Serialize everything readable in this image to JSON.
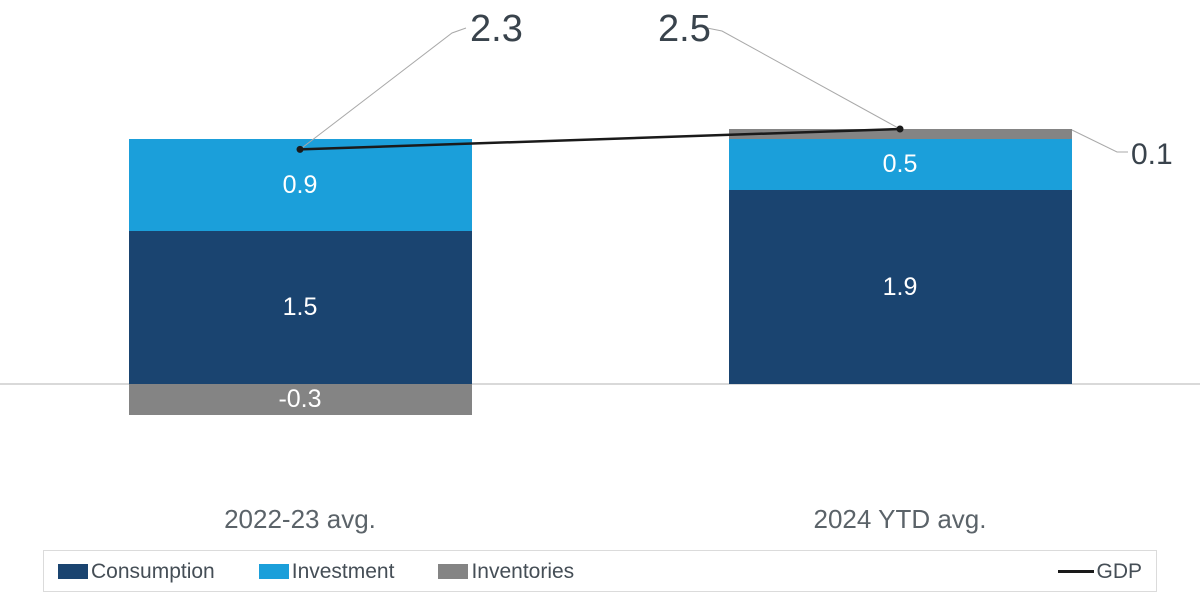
{
  "chart_data": {
    "type": "bar",
    "stacked": true,
    "categories": [
      "2022-23 avg.",
      "2024 YTD avg."
    ],
    "series": [
      {
        "name": "Consumption",
        "color": "#1a4470",
        "values": [
          1.5,
          1.9
        ]
      },
      {
        "name": "Investment",
        "color": "#1b9fda",
        "values": [
          0.9,
          0.5
        ]
      },
      {
        "name": "Inventories",
        "color": "#848484",
        "values": [
          -0.3,
          0.1
        ]
      }
    ],
    "line_series": {
      "name": "GDP",
      "color": "#1a1a1a",
      "values": [
        2.3,
        2.5
      ]
    },
    "data_labels": true,
    "value_axis": {
      "visible": false,
      "zero_line": true
    },
    "ylim": [
      -0.5,
      3.0
    ],
    "grid": false,
    "legend_position": "bottom"
  }
}
